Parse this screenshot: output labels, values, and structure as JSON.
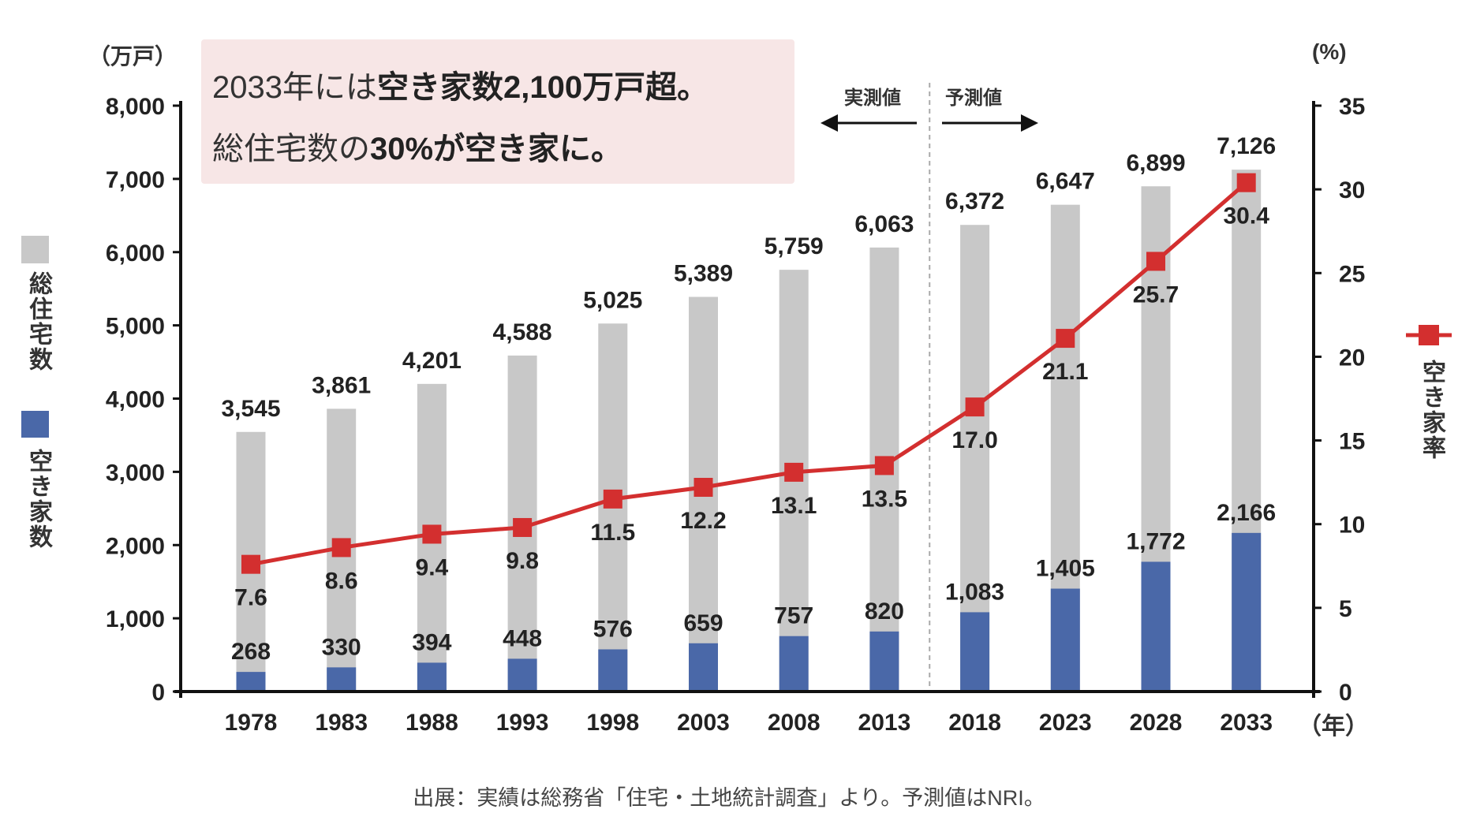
{
  "chart_data": {
    "type": "bar+line",
    "categories": [
      "1978",
      "1983",
      "1988",
      "1993",
      "1998",
      "2003",
      "2008",
      "2013",
      "2018",
      "2023",
      "2028",
      "2033"
    ],
    "series": [
      {
        "name": "総住宅数",
        "type": "bar",
        "axis": "left",
        "color": "#c8c8c8",
        "values": [
          3545,
          3861,
          4201,
          4588,
          5025,
          5389,
          5759,
          6063,
          6372,
          6647,
          6899,
          7126
        ],
        "labels": [
          "3,545",
          "3,861",
          "4,201",
          "4,588",
          "5,025",
          "5,389",
          "5,759",
          "6,063",
          "6,372",
          "6,647",
          "6,899",
          "7,126"
        ]
      },
      {
        "name": "空き家数",
        "type": "bar",
        "axis": "left",
        "color": "#4a68a8",
        "values": [
          268,
          330,
          394,
          448,
          576,
          659,
          757,
          820,
          1083,
          1405,
          1772,
          2166
        ],
        "labels": [
          "268",
          "330",
          "394",
          "448",
          "576",
          "659",
          "757",
          "820",
          "1,083",
          "1,405",
          "1,772",
          "2,166"
        ]
      },
      {
        "name": "空き家率",
        "type": "line",
        "axis": "right",
        "color": "#d32f2f",
        "values": [
          7.6,
          8.6,
          9.4,
          9.8,
          11.5,
          12.2,
          13.1,
          13.5,
          17.0,
          21.1,
          25.7,
          30.4
        ],
        "labels": [
          "7.6",
          "8.6",
          "9.4",
          "9.8",
          "11.5",
          "12.2",
          "13.1",
          "13.5",
          "17.0",
          "21.1",
          "25.7",
          "30.4"
        ]
      }
    ],
    "y_left": {
      "unit": "（万戸）",
      "ylim": [
        0,
        8000
      ],
      "ticks": [
        "0",
        "1,000",
        "2,000",
        "3,000",
        "4,000",
        "5,000",
        "6,000",
        "7,000",
        "8,000"
      ]
    },
    "y_right": {
      "unit": "(%)",
      "ylim": [
        0,
        35
      ],
      "ticks": [
        "0",
        "5",
        "10",
        "15",
        "20",
        "25",
        "30",
        "35"
      ]
    },
    "x_unit": "（年）",
    "divider_after": "2013",
    "actual_label": "実測値",
    "forecast_label": "予測値",
    "legend_left": [
      "総住宅数",
      "空き家数"
    ],
    "legend_right": "空き家率",
    "callout": {
      "line1_a": "2033年には",
      "line1_b": "空き家数2,100万戸超。",
      "line2_a": "総住宅数の",
      "line2_b": "30%が空き家に。"
    },
    "source": "出展：実績は総務省「住宅・土地統計調査」より。予測値はNRI。"
  }
}
